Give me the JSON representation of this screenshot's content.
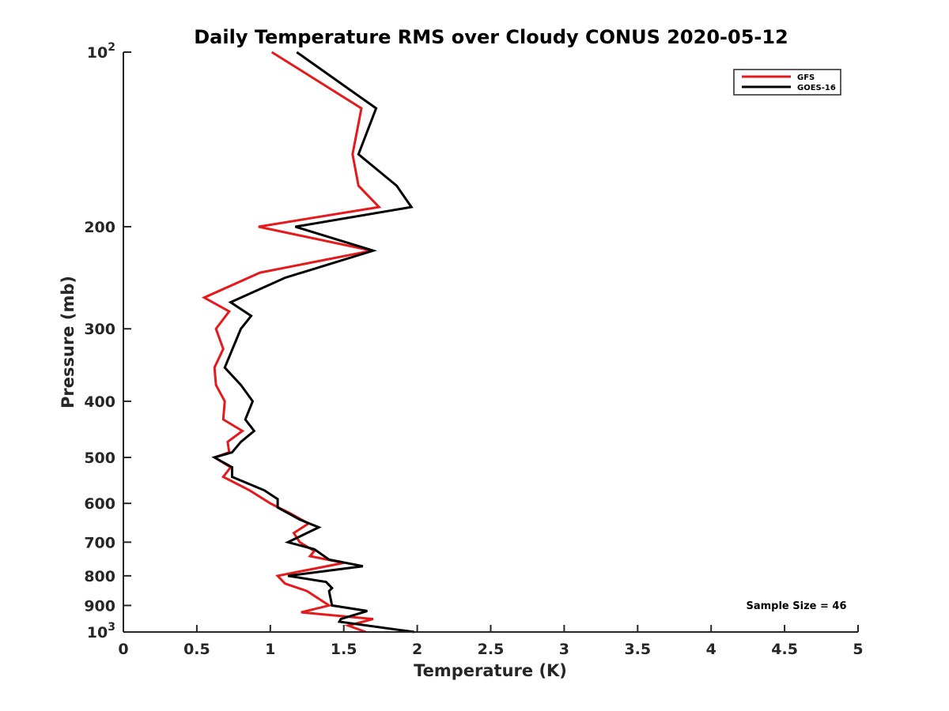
{
  "chart_data": {
    "type": "line",
    "title": "Daily Temperature RMS over Cloudy CONUS 2020-05-12",
    "xlabel": "Temperature (K)",
    "ylabel": "Pressure (mb)",
    "xlim": [
      0,
      5
    ],
    "ylim": [
      100,
      1000
    ],
    "y_scale": "log",
    "y_reversed": true,
    "grid": false,
    "legend_position": "top-right",
    "x_ticks": [
      0,
      0.5,
      1,
      1.5,
      2,
      2.5,
      3,
      3.5,
      4,
      4.5,
      5
    ],
    "x_tick_labels": [
      "0",
      "0.5",
      "1",
      "1.5",
      "2",
      "2.5",
      "3",
      "3.5",
      "4",
      "4.5",
      "5"
    ],
    "y_ticks": [
      100,
      200,
      300,
      400,
      500,
      600,
      700,
      800,
      900,
      1000
    ],
    "y_tick_labels": [
      {
        "base": "10",
        "exp": "2"
      },
      {
        "base": "200",
        "exp": ""
      },
      {
        "base": "300",
        "exp": ""
      },
      {
        "base": "400",
        "exp": ""
      },
      {
        "base": "500",
        "exp": ""
      },
      {
        "base": "600",
        "exp": ""
      },
      {
        "base": "700",
        "exp": ""
      },
      {
        "base": "800",
        "exp": ""
      },
      {
        "base": "900",
        "exp": ""
      },
      {
        "base": "10",
        "exp": "3"
      }
    ],
    "series": [
      {
        "name": "GFS",
        "color": "#e41a1c",
        "points": [
          [
            1.01,
            100
          ],
          [
            1.62,
            125
          ],
          [
            1.56,
            150
          ],
          [
            1.6,
            170
          ],
          [
            1.74,
            185
          ],
          [
            0.92,
            200
          ],
          [
            1.69,
            220
          ],
          [
            0.93,
            240
          ],
          [
            0.55,
            265
          ],
          [
            0.72,
            280
          ],
          [
            0.63,
            300
          ],
          [
            0.68,
            325
          ],
          [
            0.62,
            350
          ],
          [
            0.63,
            375
          ],
          [
            0.69,
            400
          ],
          [
            0.68,
            430
          ],
          [
            0.81,
            450
          ],
          [
            0.71,
            470
          ],
          [
            0.72,
            490
          ],
          [
            0.62,
            500
          ],
          [
            0.73,
            520
          ],
          [
            0.68,
            540
          ],
          [
            0.86,
            570
          ],
          [
            1.0,
            600
          ],
          [
            1.14,
            625
          ],
          [
            1.26,
            650
          ],
          [
            1.16,
            675
          ],
          [
            1.2,
            700
          ],
          [
            1.3,
            725
          ],
          [
            1.27,
            740
          ],
          [
            1.5,
            760
          ],
          [
            1.05,
            800
          ],
          [
            1.1,
            825
          ],
          [
            1.25,
            850
          ],
          [
            1.4,
            900
          ],
          [
            1.21,
            925
          ],
          [
            1.7,
            950
          ],
          [
            1.53,
            975
          ],
          [
            1.65,
            1000
          ]
        ]
      },
      {
        "name": "GOES-16",
        "color": "#000000",
        "points": [
          [
            1.18,
            100
          ],
          [
            1.72,
            125
          ],
          [
            1.6,
            150
          ],
          [
            1.86,
            170
          ],
          [
            1.96,
            185
          ],
          [
            1.17,
            200
          ],
          [
            1.7,
            220
          ],
          [
            1.1,
            245
          ],
          [
            0.73,
            270
          ],
          [
            0.87,
            285
          ],
          [
            0.8,
            300
          ],
          [
            0.69,
            350
          ],
          [
            0.8,
            375
          ],
          [
            0.88,
            400
          ],
          [
            0.83,
            430
          ],
          [
            0.89,
            450
          ],
          [
            0.8,
            470
          ],
          [
            0.74,
            490
          ],
          [
            0.62,
            500
          ],
          [
            0.74,
            520
          ],
          [
            0.74,
            540
          ],
          [
            0.96,
            570
          ],
          [
            1.05,
            590
          ],
          [
            1.05,
            610
          ],
          [
            1.2,
            640
          ],
          [
            1.33,
            660
          ],
          [
            1.12,
            700
          ],
          [
            1.3,
            720
          ],
          [
            1.4,
            750
          ],
          [
            1.63,
            770
          ],
          [
            1.12,
            800
          ],
          [
            1.38,
            820
          ],
          [
            1.42,
            840
          ],
          [
            1.4,
            850
          ],
          [
            1.42,
            900
          ],
          [
            1.66,
            920
          ],
          [
            1.48,
            950
          ],
          [
            1.47,
            960
          ],
          [
            1.98,
            1000
          ]
        ]
      }
    ],
    "annotation": "Sample Size = 46"
  }
}
